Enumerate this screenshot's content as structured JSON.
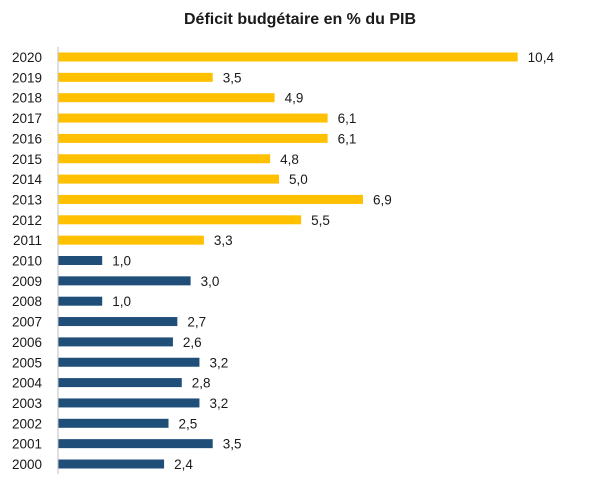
{
  "chart_data": {
    "type": "bar",
    "orientation": "horizontal",
    "title": "Déficit budgétaire en % du PIB",
    "xlabel": "",
    "ylabel": "",
    "xlim": [
      0,
      11
    ],
    "grid": false,
    "legend": "none",
    "categories": [
      "2020",
      "2019",
      "2018",
      "2017",
      "2016",
      "2015",
      "2014",
      "2013",
      "2012",
      "2011",
      "2010",
      "2009",
      "2008",
      "2007",
      "2006",
      "2005",
      "2004",
      "2003",
      "2002",
      "2001",
      "2000"
    ],
    "values": [
      10.4,
      3.5,
      4.9,
      6.1,
      6.1,
      4.8,
      5.0,
      6.9,
      5.5,
      3.3,
      1.0,
      3.0,
      1.0,
      2.7,
      2.6,
      3.2,
      2.8,
      3.2,
      2.5,
      3.5,
      2.4
    ],
    "value_labels": [
      "10,4",
      "3,5",
      "4,9",
      "6,1",
      "6,1",
      "4,8",
      "5,0",
      "6,9",
      "5,5",
      "3,3",
      "1,0",
      "3,0",
      "1,0",
      "2,7",
      "2,6",
      "3,2",
      "2,8",
      "3,2",
      "2,5",
      "3,5",
      "2,4"
    ],
    "colors": {
      "2011-2020": "#FFC000",
      "2000-2010": "#1F4E79",
      "axis": "#BFBFBF"
    },
    "bar_colors": [
      "#FFC000",
      "#FFC000",
      "#FFC000",
      "#FFC000",
      "#FFC000",
      "#FFC000",
      "#FFC000",
      "#FFC000",
      "#FFC000",
      "#FFC000",
      "#1F4E79",
      "#1F4E79",
      "#1F4E79",
      "#1F4E79",
      "#1F4E79",
      "#1F4E79",
      "#1F4E79",
      "#1F4E79",
      "#1F4E79",
      "#1F4E79",
      "#1F4E79"
    ]
  }
}
